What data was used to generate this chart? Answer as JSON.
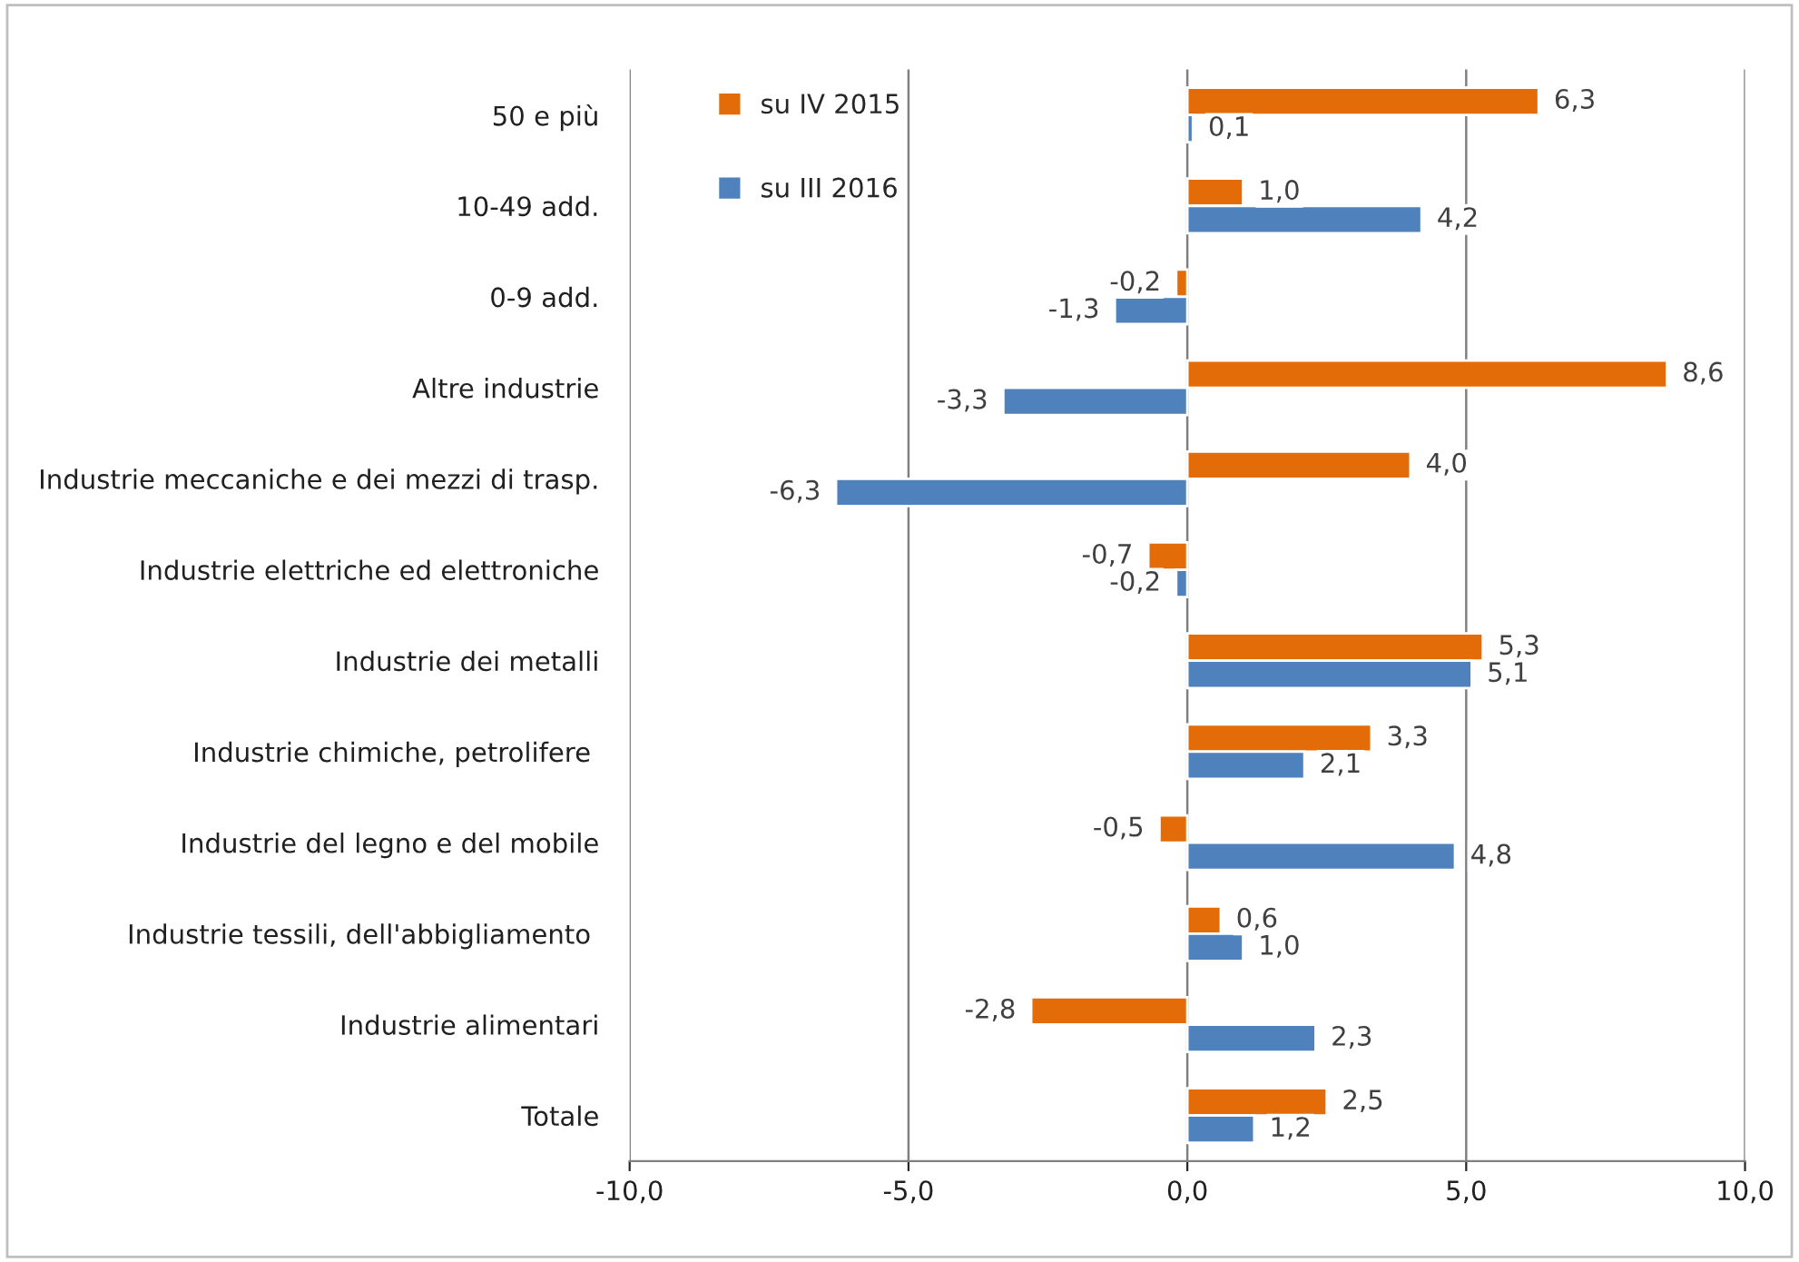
{
  "chart_data": {
    "type": "bar",
    "orientation": "horizontal",
    "categories": [
      "50 e più",
      "10-49 add.",
      "0-9 add.",
      "Altre industrie",
      "Industrie meccaniche e dei mezzi di trasp.",
      "Industrie elettriche ed elettroniche",
      "Industrie dei metalli",
      "Industrie chimiche, petrolifere ",
      "Industrie del legno e del mobile",
      "Industrie tessili, dell'abbigliamento ",
      "Industrie alimentari",
      "Totale"
    ],
    "series": [
      {
        "name": "su IV 2015",
        "color": "#e36c09",
        "values": [
          6.3,
          1.0,
          -0.2,
          8.6,
          4.0,
          -0.7,
          5.3,
          3.3,
          -0.5,
          0.6,
          -2.8,
          2.5
        ],
        "value_labels": [
          "6,3",
          "1,0",
          "-0,2",
          "8,6",
          "4,0",
          "-0,7",
          "5,3",
          "3,3",
          "-0,5",
          "0,6",
          "-2,8",
          "2,5"
        ]
      },
      {
        "name": "su III 2016",
        "color": "#4f81bd",
        "values": [
          0.1,
          4.2,
          -1.3,
          -3.3,
          -6.3,
          -0.2,
          5.1,
          2.1,
          4.8,
          1.0,
          2.3,
          1.2
        ],
        "value_labels": [
          "0,1",
          "4,2",
          "-1,3",
          "-3,3",
          "-6,3",
          "-0,2",
          "5,1",
          "2,1",
          "4,8",
          "1,0",
          "2,3",
          "1,2"
        ]
      }
    ],
    "xlim": [
      -10,
      10
    ],
    "xticks": [
      {
        "value": -10,
        "label": "-10,0"
      },
      {
        "value": -5,
        "label": "-5,0"
      },
      {
        "value": 0,
        "label": "0,0"
      },
      {
        "value": 5,
        "label": "5,0"
      },
      {
        "value": 10,
        "label": "10,0"
      }
    ],
    "grid": "x",
    "legend": "top left"
  }
}
